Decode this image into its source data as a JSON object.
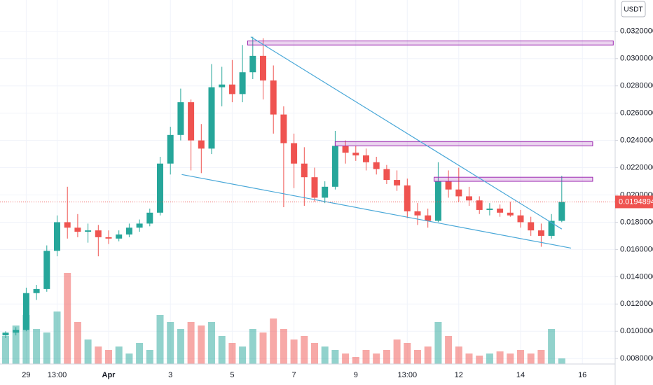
{
  "chart_data": {
    "type": "candlestick",
    "quote_unit": "USDT",
    "up_color": "#26a69a",
    "down_color": "#ef5350",
    "zone_color": "#9c27b0",
    "trendline_color": "#4aa8d8",
    "grid": true,
    "ylim": [
      0.0076,
      0.0343
    ],
    "yticks": [
      {
        "value": 0.008,
        "label": "0.0080000"
      },
      {
        "value": 0.01,
        "label": "0.0100000"
      },
      {
        "value": 0.012,
        "label": "0.0120000"
      },
      {
        "value": 0.014,
        "label": "0.0140000"
      },
      {
        "value": 0.016,
        "label": "0.0160000"
      },
      {
        "value": 0.018,
        "label": "0.0180000"
      },
      {
        "value": 0.02,
        "label": "0.0200000"
      },
      {
        "value": 0.022,
        "label": "0.0220000"
      },
      {
        "value": 0.024,
        "label": "0.0240000"
      },
      {
        "value": 0.026,
        "label": "0.0260000"
      },
      {
        "value": 0.028,
        "label": "0.0280000"
      },
      {
        "value": 0.03,
        "label": "0.0300000"
      },
      {
        "value": 0.032,
        "label": "0.0320000"
      }
    ],
    "categories": [
      null,
      null,
      "29",
      null,
      null,
      "13:00",
      null,
      null,
      null,
      null,
      "Apr",
      null,
      null,
      null,
      null,
      null,
      "3",
      null,
      null,
      null,
      null,
      null,
      "5",
      null,
      null,
      null,
      null,
      null,
      "7",
      null,
      null,
      null,
      null,
      null,
      "9",
      null,
      null,
      null,
      null,
      "13:00",
      null,
      null,
      null,
      null,
      "12",
      null,
      null,
      null,
      null,
      null,
      "14",
      null,
      null,
      null,
      null,
      null,
      "16"
    ],
    "open": [
      0.0097,
      0.0099,
      0.0101,
      0.0128,
      0.0131,
      0.0159,
      0.018,
      0.0176,
      0.0173,
      0.0174,
      0.0169,
      0.0168,
      0.0171,
      0.0176,
      0.0179,
      0.0187,
      0.0223,
      0.0244,
      0.0268,
      0.024,
      0.0234,
      0.0279,
      0.0281,
      0.0274,
      0.029,
      0.0302,
      0.0284,
      0.0259,
      0.0238,
      0.0223,
      0.0213,
      0.0198,
      0.0206,
      0.0236,
      0.0231,
      0.0229,
      0.0224,
      0.0219,
      0.0211,
      0.0207,
      0.0188,
      0.0185,
      0.0181,
      0.021,
      0.0204,
      0.0199,
      0.0196,
      0.0189,
      0.019,
      0.0187,
      0.0185,
      0.018,
      0.0174,
      0.017,
      0.0181,
      null,
      null
    ],
    "high": [
      0.01,
      0.0103,
      0.0132,
      0.0134,
      0.0163,
      0.0185,
      0.0206,
      0.0186,
      0.0179,
      0.0178,
      0.0174,
      0.0174,
      0.0179,
      0.0182,
      0.019,
      0.0228,
      0.025,
      0.0278,
      0.027,
      0.0252,
      0.0296,
      0.0294,
      0.0299,
      0.031,
      0.0316,
      0.0315,
      0.0295,
      0.0265,
      0.0245,
      0.0235,
      0.022,
      0.021,
      0.0247,
      0.024,
      0.0236,
      0.0234,
      0.0228,
      0.0222,
      0.0218,
      0.0212,
      0.0194,
      0.019,
      0.0224,
      0.0218,
      0.022,
      0.0206,
      0.0199,
      0.0194,
      0.0193,
      0.0195,
      0.0189,
      0.0184,
      0.0179,
      0.0186,
      0.0214,
      null,
      null
    ],
    "low": [
      0.0095,
      0.0097,
      0.01,
      0.0123,
      0.0129,
      0.0155,
      0.0168,
      0.0169,
      0.0165,
      0.0155,
      0.0164,
      0.0166,
      0.0169,
      0.0173,
      0.0177,
      0.0185,
      0.0215,
      0.024,
      0.0218,
      0.0216,
      0.023,
      0.0265,
      0.0268,
      0.0268,
      0.0285,
      0.027,
      0.0245,
      0.0191,
      0.0205,
      0.0192,
      0.0195,
      0.0194,
      0.0204,
      0.0223,
      0.0225,
      0.0218,
      0.0215,
      0.0208,
      0.0203,
      0.0183,
      0.0178,
      0.0176,
      0.018,
      0.0198,
      0.0195,
      0.0192,
      0.0186,
      0.0185,
      0.0184,
      0.0184,
      0.0176,
      0.017,
      0.0162,
      0.0168,
      0.018,
      null,
      null
    ],
    "close": [
      0.0099,
      0.0101,
      0.0128,
      0.0131,
      0.0159,
      0.018,
      0.0176,
      0.0173,
      0.0174,
      0.0169,
      0.0168,
      0.0171,
      0.0176,
      0.0179,
      0.0187,
      0.0223,
      0.0244,
      0.0268,
      0.024,
      0.0234,
      0.0279,
      0.0281,
      0.0274,
      0.029,
      0.0302,
      0.0284,
      0.0259,
      0.0238,
      0.0223,
      0.0213,
      0.0198,
      0.0206,
      0.0236,
      0.0231,
      0.0229,
      0.0224,
      0.0219,
      0.0211,
      0.0207,
      0.0188,
      0.0185,
      0.0181,
      0.021,
      0.0204,
      0.0199,
      0.0196,
      0.0189,
      0.019,
      0.0187,
      0.0185,
      0.018,
      0.0174,
      0.017,
      0.0181,
      0.0194894,
      null,
      null
    ],
    "volume": [
      40,
      55,
      70,
      50,
      45,
      75,
      130,
      60,
      35,
      25,
      20,
      25,
      15,
      30,
      20,
      70,
      60,
      50,
      60,
      55,
      60,
      40,
      30,
      25,
      50,
      45,
      65,
      50,
      35,
      40,
      30,
      25,
      20,
      15,
      10,
      20,
      15,
      20,
      35,
      30,
      20,
      25,
      60,
      40,
      25,
      15,
      12,
      15,
      18,
      15,
      20,
      15,
      20,
      50,
      8,
      null,
      null
    ],
    "zones": [
      {
        "from": 23.5,
        "to": 59,
        "low": 0.031,
        "high": 0.0313
      },
      {
        "from": 32,
        "to": 57,
        "low": 0.0236,
        "high": 0.0239
      },
      {
        "from": 41.6,
        "to": 57,
        "low": 0.021,
        "high": 0.0213
      }
    ],
    "trendlines": [
      {
        "from": 23.8,
        "to": 54.0,
        "start": 0.0316,
        "end": 0.0175
      },
      {
        "from": 17.1,
        "to": 54.9,
        "start": 0.0215,
        "end": 0.0161
      }
    ]
  }
}
